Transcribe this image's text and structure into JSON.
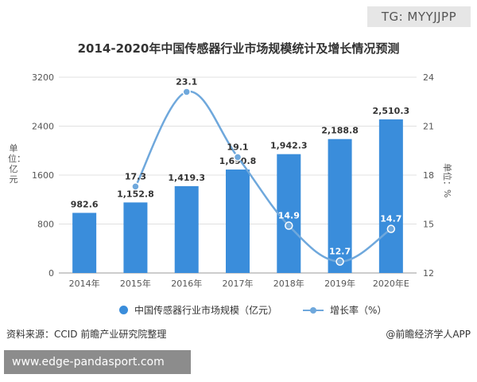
{
  "watermark_badge": "TG: MYYJJPP",
  "footer": {
    "source": "资料来源：CCID 前瞻产业研究院整理",
    "app": "@前瞻经济学人APP",
    "url": "www.edge-pandasport.com"
  },
  "colors": {
    "bar": "#3a8ddb",
    "line": "#6fa8dc",
    "axis_text": "#555555",
    "grid": "#e0e0e0"
  },
  "chart_data": {
    "type": "bar",
    "title": "2014-2020年中国传感器行业市场规模统计及增长情况预测",
    "categories": [
      "2014年",
      "2015年",
      "2016年",
      "2017年",
      "2018年",
      "2019年",
      "2020年E"
    ],
    "ylabel": "单位：亿元",
    "ylabel_right": "单位：%",
    "ylim": [
      0,
      3200
    ],
    "yticks": [
      0,
      800,
      1600,
      2400,
      3200
    ],
    "ylim_right": [
      12,
      24
    ],
    "yticks_right": [
      12,
      15,
      18,
      21,
      24
    ],
    "grid": true,
    "legend_position": "bottom",
    "series": [
      {
        "name": "中国传感器行业市场规模（亿元）",
        "type": "bar",
        "axis": "left",
        "values": [
          982.6,
          1152.8,
          1419.3,
          1690.8,
          1942.3,
          2188.8,
          2510.3
        ],
        "labels": [
          "982.6",
          "1,152.8",
          "1,419.3",
          "1,690.8",
          "1,942.3",
          "2,188.8",
          "2,510.3"
        ]
      },
      {
        "name": "增长率（%）",
        "type": "line",
        "axis": "right",
        "x": [
          "2015年",
          "2016年",
          "2017年",
          "2018年",
          "2019年",
          "2020年E"
        ],
        "values": [
          17.3,
          23.1,
          19.1,
          14.9,
          12.7,
          14.7
        ],
        "labels": [
          "17.3",
          "23.1",
          "19.1",
          "14.9",
          "12.7",
          "14.7"
        ]
      }
    ]
  }
}
